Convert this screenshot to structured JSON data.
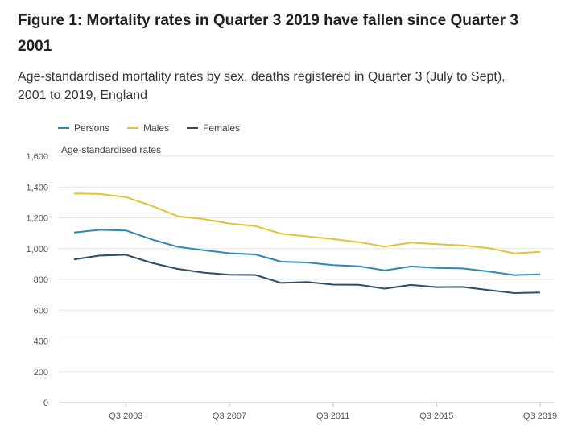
{
  "chart_data": {
    "type": "line",
    "title": "Figure 1: Mortality rates in Quarter 3 2019 have fallen since Quarter 3 2001",
    "subtitle": "Age-standardised mortality rates by sex, deaths registered in Quarter 3 (July to Sept), 2001 to 2019, England",
    "ylabel": "Age-standardised rates",
    "xlabel": "",
    "x": [
      "Q3 2001",
      "Q3 2002",
      "Q3 2003",
      "Q3 2004",
      "Q3 2005",
      "Q3 2006",
      "Q3 2007",
      "Q3 2008",
      "Q3 2009",
      "Q3 2010",
      "Q3 2011",
      "Q3 2012",
      "Q3 2013",
      "Q3 2014",
      "Q3 2015",
      "Q3 2016",
      "Q3 2017",
      "Q3 2018",
      "Q3 2019"
    ],
    "x_tick_labels": [
      "Q3 2003",
      "Q3 2007",
      "Q3 2011",
      "Q3 2015",
      "Q3 2019"
    ],
    "ylim": [
      0,
      1600
    ],
    "y_ticks": [
      "0",
      "200",
      "400",
      "600",
      "800",
      "1,000",
      "1,200",
      "1,400",
      "1,600"
    ],
    "y_tick_values": [
      0,
      200,
      400,
      600,
      800,
      1000,
      1200,
      1400,
      1600
    ],
    "grid": true,
    "legend_position": "top-left",
    "series": [
      {
        "name": "Persons",
        "color": "#2a8ab8",
        "values": [
          1105,
          1122,
          1118,
          1060,
          1012,
          990,
          970,
          962,
          915,
          910,
          893,
          885,
          858,
          884,
          874,
          871,
          852,
          828,
          833
        ]
      },
      {
        "name": "Males",
        "color": "#e6c232",
        "values": [
          1358,
          1355,
          1335,
          1278,
          1210,
          1192,
          1163,
          1146,
          1097,
          1079,
          1062,
          1042,
          1013,
          1039,
          1029,
          1021,
          1004,
          969,
          979
        ]
      },
      {
        "name": "Females",
        "color": "#2c4d66",
        "values": [
          930,
          955,
          960,
          907,
          868,
          844,
          830,
          829,
          777,
          783,
          766,
          765,
          740,
          764,
          750,
          751,
          731,
          711,
          715
        ]
      }
    ]
  }
}
